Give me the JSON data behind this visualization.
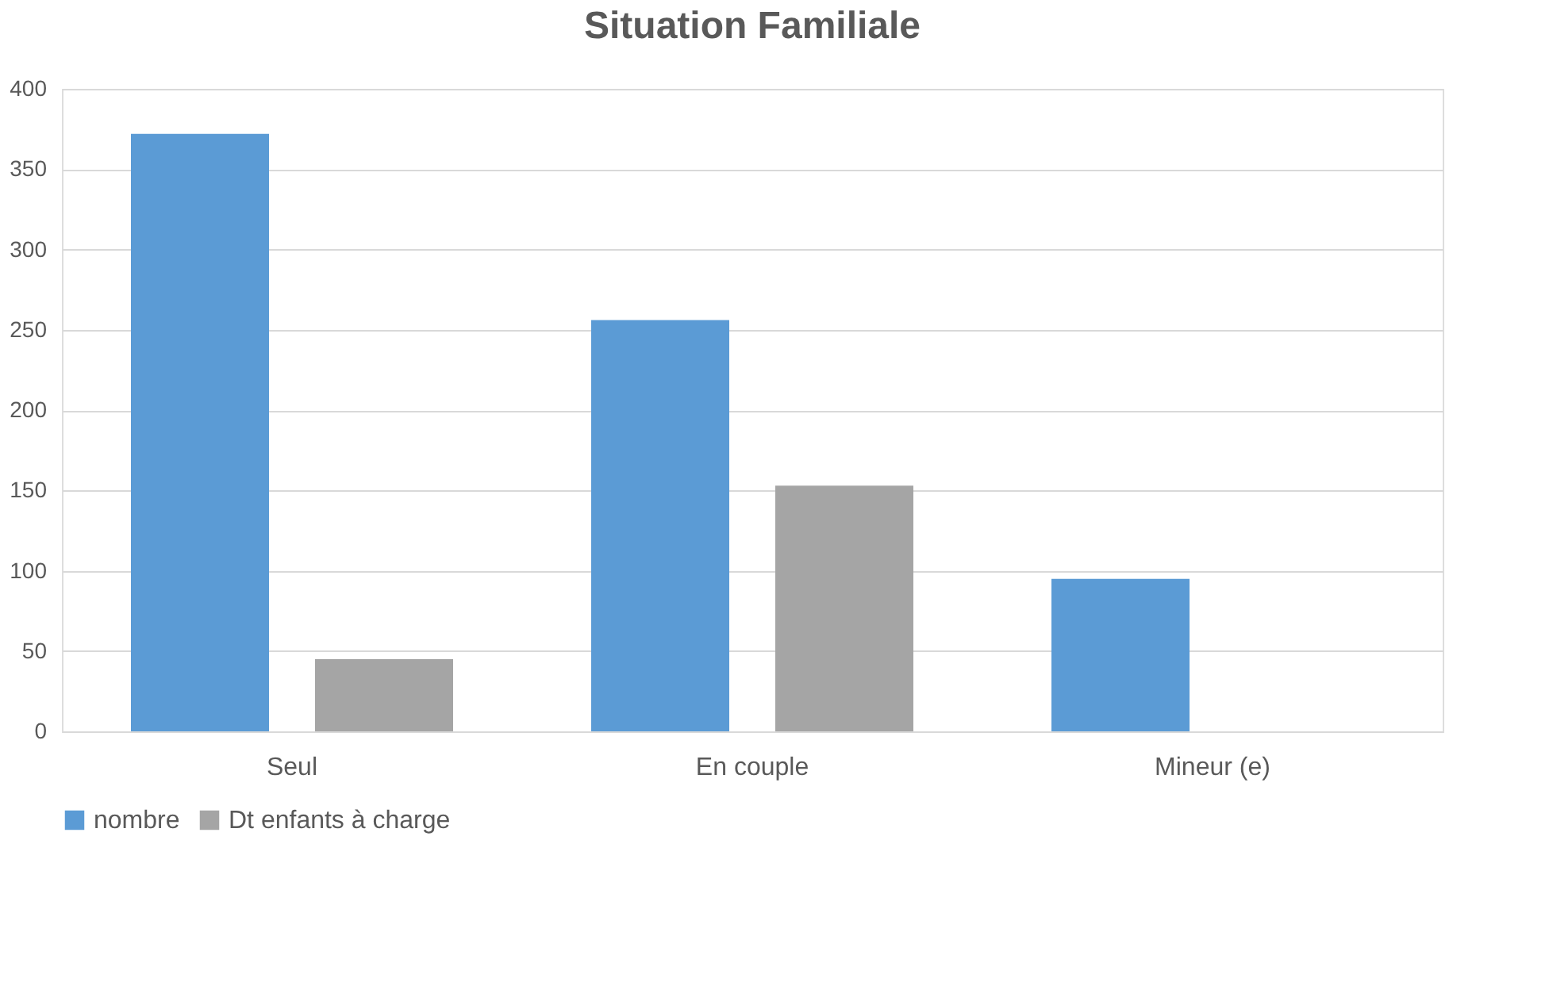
{
  "chart_data": {
    "type": "bar",
    "title": "Situation Familiale",
    "categories": [
      "Seul",
      "En couple",
      "Mineur (e)"
    ],
    "series": [
      {
        "name": "nombre",
        "color": "#5b9bd5",
        "values": [
          372,
          256,
          95
        ]
      },
      {
        "name": "Dt enfants à charge",
        "color": "#a5a5a5",
        "values": [
          45,
          153,
          0
        ]
      }
    ],
    "ylim": [
      0,
      400
    ],
    "yticks": [
      0,
      50,
      100,
      150,
      200,
      250,
      300,
      350,
      400
    ],
    "grid": "y",
    "legend": "bottom"
  }
}
